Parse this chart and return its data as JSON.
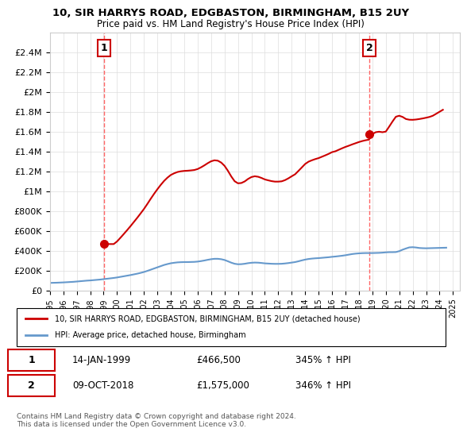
{
  "title_line1": "10, SIR HARRYS ROAD, EDGBASTON, BIRMINGHAM, B15 2UY",
  "title_line2": "Price paid vs. HM Land Registry's House Price Index (HPI)",
  "ylim": [
    0,
    2600000
  ],
  "yticks": [
    0,
    200000,
    400000,
    600000,
    800000,
    1000000,
    1200000,
    1400000,
    1600000,
    1800000,
    2000000,
    2200000,
    2400000
  ],
  "ytick_labels": [
    "£0",
    "£200K",
    "£400K",
    "£600K",
    "£800K",
    "£1M",
    "£1.2M",
    "£1.4M",
    "£1.6M",
    "£1.8M",
    "£2M",
    "£2.2M",
    "£2.4M"
  ],
  "sale1_x": 1999.04,
  "sale1_y": 466500,
  "sale1_label": "1",
  "sale2_x": 2018.77,
  "sale2_y": 1575000,
  "sale2_label": "2",
  "annotation1_date": "14-JAN-1999",
  "annotation1_price": "£466,500",
  "annotation1_hpi": "345% ↑ HPI",
  "annotation2_date": "09-OCT-2018",
  "annotation2_price": "£1,575,000",
  "annotation2_hpi": "346% ↑ HPI",
  "legend_line1": "10, SIR HARRYS ROAD, EDGBASTON, BIRMINGHAM, B15 2UY (detached house)",
  "legend_line2": "HPI: Average price, detached house, Birmingham",
  "footer": "Contains HM Land Registry data © Crown copyright and database right 2024.\nThis data is licensed under the Open Government Licence v3.0.",
  "property_color": "#cc0000",
  "hpi_color": "#6699cc",
  "vline_color": "#ff6666",
  "background_color": "#ffffff",
  "grid_color": "#dddddd",
  "hpi_data_x": [
    1995,
    1995.25,
    1995.5,
    1995.75,
    1996,
    1996.25,
    1996.5,
    1996.75,
    1997,
    1997.25,
    1997.5,
    1997.75,
    1998,
    1998.25,
    1998.5,
    1998.75,
    1999,
    1999.25,
    1999.5,
    1999.75,
    2000,
    2000.25,
    2000.5,
    2000.75,
    2001,
    2001.25,
    2001.5,
    2001.75,
    2002,
    2002.25,
    2002.5,
    2002.75,
    2003,
    2003.25,
    2003.5,
    2003.75,
    2004,
    2004.25,
    2004.5,
    2004.75,
    2005,
    2005.25,
    2005.5,
    2005.75,
    2006,
    2006.25,
    2006.5,
    2006.75,
    2007,
    2007.25,
    2007.5,
    2007.75,
    2008,
    2008.25,
    2008.5,
    2008.75,
    2009,
    2009.25,
    2009.5,
    2009.75,
    2010,
    2010.25,
    2010.5,
    2010.75,
    2011,
    2011.25,
    2011.5,
    2011.75,
    2012,
    2012.25,
    2012.5,
    2012.75,
    2013,
    2013.25,
    2013.5,
    2013.75,
    2014,
    2014.25,
    2014.5,
    2014.75,
    2015,
    2015.25,
    2015.5,
    2015.75,
    2016,
    2016.25,
    2016.5,
    2016.75,
    2017,
    2017.25,
    2017.5,
    2017.75,
    2018,
    2018.25,
    2018.5,
    2018.75,
    2019,
    2019.25,
    2019.5,
    2019.75,
    2020,
    2020.25,
    2020.5,
    2020.75,
    2021,
    2021.25,
    2021.5,
    2021.75,
    2022,
    2022.25,
    2022.5,
    2022.75,
    2023,
    2023.25,
    2023.5,
    2023.75,
    2024,
    2024.25,
    2024.5
  ],
  "hpi_data_y": [
    75000,
    76000,
    77000,
    78500,
    80000,
    82000,
    84000,
    86000,
    89000,
    92000,
    95000,
    98000,
    100000,
    103000,
    106000,
    109000,
    113000,
    117000,
    121000,
    125000,
    130000,
    136000,
    142000,
    148000,
    154000,
    161000,
    168000,
    176000,
    185000,
    196000,
    208000,
    220000,
    232000,
    244000,
    256000,
    265000,
    273000,
    278000,
    282000,
    284000,
    285000,
    285000,
    286000,
    287000,
    290000,
    295000,
    301000,
    308000,
    314000,
    318000,
    318000,
    314000,
    306000,
    293000,
    279000,
    268000,
    263000,
    264000,
    268000,
    274000,
    278000,
    280000,
    279000,
    276000,
    272000,
    270000,
    268000,
    267000,
    267000,
    268000,
    271000,
    275000,
    280000,
    285000,
    293000,
    302000,
    310000,
    316000,
    320000,
    323000,
    325000,
    328000,
    331000,
    334000,
    338000,
    341000,
    345000,
    349000,
    354000,
    360000,
    366000,
    370000,
    373000,
    375000,
    376000,
    376000,
    376000,
    377000,
    378000,
    380000,
    383000,
    385000,
    385000,
    386000,
    395000,
    410000,
    422000,
    433000,
    435000,
    432000,
    427000,
    425000,
    424000,
    425000,
    426000,
    427000,
    428000,
    429000,
    430000
  ],
  "property_data_x": [
    1995,
    1995.25,
    1995.5,
    1995.75,
    1996,
    1996.25,
    1996.5,
    1996.75,
    1997,
    1997.25,
    1997.5,
    1997.75,
    1998,
    1998.25,
    1998.5,
    1998.75,
    1999,
    1999.25,
    1999.5,
    1999.75,
    2000,
    2000.25,
    2000.5,
    2000.75,
    2001,
    2001.25,
    2001.5,
    2001.75,
    2002,
    2002.25,
    2002.5,
    2002.75,
    2003,
    2003.25,
    2003.5,
    2003.75,
    2004,
    2004.25,
    2004.5,
    2004.75,
    2005,
    2005.25,
    2005.5,
    2005.75,
    2006,
    2006.25,
    2006.5,
    2006.75,
    2007,
    2007.25,
    2007.5,
    2007.75,
    2008,
    2008.25,
    2008.5,
    2008.75,
    2009,
    2009.25,
    2009.5,
    2009.75,
    2010,
    2010.25,
    2010.5,
    2010.75,
    2011,
    2011.25,
    2011.5,
    2011.75,
    2012,
    2012.25,
    2012.5,
    2012.75,
    2013,
    2013.25,
    2013.5,
    2013.75,
    2014,
    2014.25,
    2014.5,
    2014.75,
    2015,
    2015.25,
    2015.5,
    2015.75,
    2016,
    2016.25,
    2016.5,
    2016.75,
    2017,
    2017.25,
    2017.5,
    2017.75,
    2018,
    2018.25,
    2018.5,
    2018.75,
    2019,
    2019.25,
    2019.5,
    2019.75,
    2020,
    2020.25,
    2020.5,
    2020.75,
    2021,
    2021.25,
    2021.5,
    2021.75,
    2022,
    2022.25,
    2022.5,
    2022.75,
    2023,
    2023.25,
    2023.5,
    2023.75,
    2024,
    2024.25,
    2024.5
  ],
  "property_data_y": [
    null,
    null,
    null,
    null,
    null,
    null,
    null,
    null,
    null,
    null,
    null,
    null,
    null,
    null,
    null,
    null,
    466500,
    466500,
    466500,
    466500,
    493000,
    530000,
    568000,
    607000,
    647000,
    689000,
    731000,
    775000,
    820000,
    870000,
    922000,
    972000,
    1019000,
    1063000,
    1103000,
    1136000,
    1163000,
    1180000,
    1193000,
    1200000,
    1204000,
    1206000,
    1209000,
    1213000,
    1223000,
    1240000,
    1260000,
    1282000,
    1301000,
    1311000,
    1307000,
    1288000,
    1255000,
    1205000,
    1148000,
    1100000,
    1079000,
    1082000,
    1098000,
    1123000,
    1142000,
    1150000,
    1145000,
    1133000,
    1118000,
    1109000,
    1101000,
    1096000,
    1096000,
    1099000,
    1111000,
    1129000,
    1150000,
    1170000,
    1204000,
    1239000,
    1274000,
    1297000,
    1311000,
    1323000,
    1333000,
    1347000,
    1361000,
    1376000,
    1393000,
    1402000,
    1417000,
    1432000,
    1446000,
    1458000,
    1471000,
    1483000,
    1495000,
    1505000,
    1513000,
    1519000,
    1575000,
    1594000,
    1599000,
    1594000,
    1600000,
    1650000,
    1702000,
    1750000,
    1760000,
    1748000,
    1727000,
    1720000,
    1719000,
    1722000,
    1727000,
    1733000,
    1740000,
    1748000,
    1760000,
    1780000,
    1800000,
    1820000
  ],
  "xticks": [
    1995,
    1996,
    1997,
    1998,
    1999,
    2000,
    2001,
    2002,
    2003,
    2004,
    2005,
    2006,
    2007,
    2008,
    2009,
    2010,
    2011,
    2012,
    2013,
    2014,
    2015,
    2016,
    2017,
    2018,
    2019,
    2020,
    2021,
    2022,
    2023,
    2024,
    2025
  ],
  "xlim": [
    1995,
    2025.5
  ]
}
